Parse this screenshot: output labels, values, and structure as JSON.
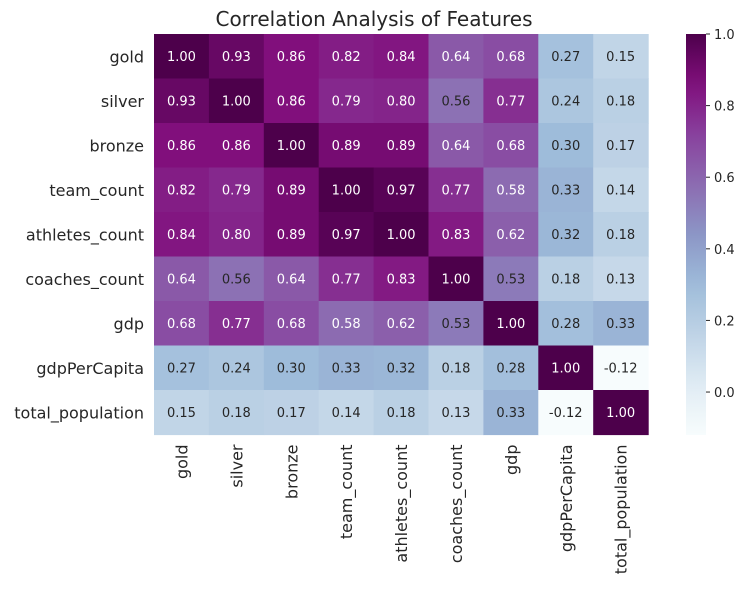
{
  "chart_data": {
    "type": "heatmap",
    "title": "Correlation Analysis of Features",
    "xlabel": "",
    "ylabel": "",
    "labels": [
      "gold",
      "silver",
      "bronze",
      "team_count",
      "athletes_count",
      "coaches_count",
      "gdp",
      "gdpPerCapita",
      "total_population"
    ],
    "matrix": [
      [
        1.0,
        0.93,
        0.86,
        0.82,
        0.84,
        0.64,
        0.68,
        0.27,
        0.15
      ],
      [
        0.93,
        1.0,
        0.86,
        0.79,
        0.8,
        0.56,
        0.77,
        0.24,
        0.18
      ],
      [
        0.86,
        0.86,
        1.0,
        0.89,
        0.89,
        0.64,
        0.68,
        0.3,
        0.17
      ],
      [
        0.82,
        0.79,
        0.89,
        1.0,
        0.97,
        0.77,
        0.58,
        0.33,
        0.14
      ],
      [
        0.84,
        0.8,
        0.89,
        0.97,
        1.0,
        0.83,
        0.62,
        0.32,
        0.18
      ],
      [
        0.64,
        0.56,
        0.64,
        0.77,
        0.83,
        1.0,
        0.53,
        0.18,
        0.13
      ],
      [
        0.68,
        0.77,
        0.68,
        0.58,
        0.62,
        0.53,
        1.0,
        0.28,
        0.33
      ],
      [
        0.27,
        0.24,
        0.3,
        0.33,
        0.32,
        0.18,
        0.28,
        1.0,
        -0.12
      ],
      [
        0.15,
        0.18,
        0.17,
        0.14,
        0.18,
        0.13,
        0.33,
        -0.12,
        1.0
      ]
    ],
    "value_format": "2 decimals",
    "colormap": "BuPu",
    "color_range": [
      -0.12,
      1.0
    ],
    "colorbar_ticks": [
      0.0,
      0.2,
      0.4,
      0.6,
      0.8,
      1.0
    ],
    "colorbar_tick_labels": [
      "0.0",
      "0.2",
      "0.4",
      "0.6",
      "0.8",
      "1.0"
    ],
    "annotation_colors": {
      "on_dark": "#ffffff",
      "on_light": "#262626"
    },
    "grid": false
  }
}
